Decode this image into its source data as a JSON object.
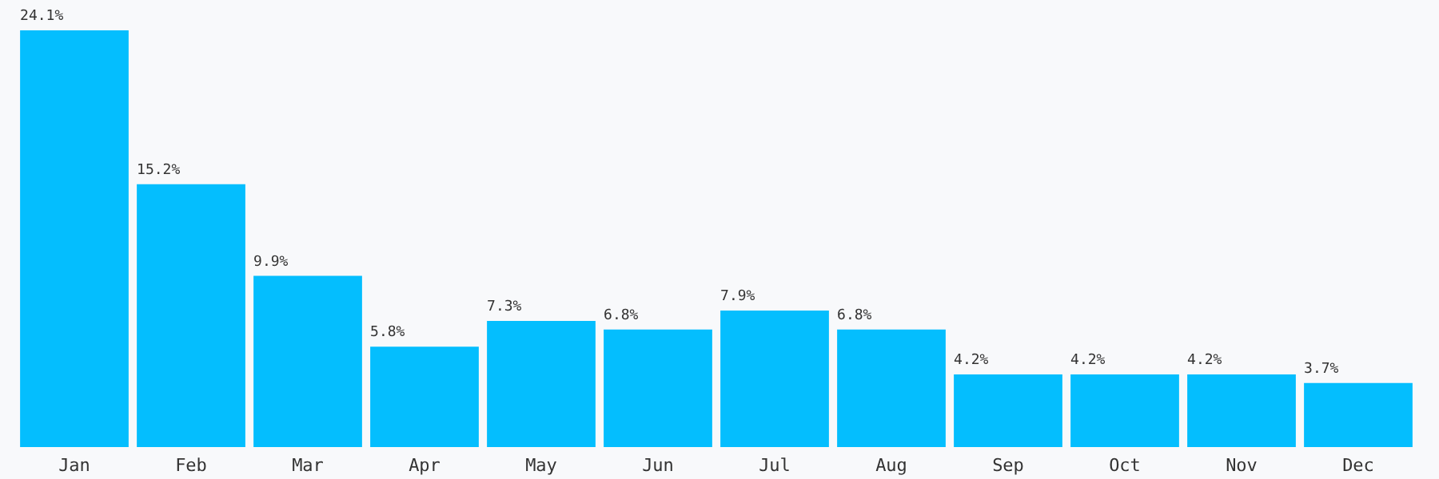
{
  "chart_data": {
    "type": "bar",
    "categories": [
      "Jan",
      "Feb",
      "Mar",
      "Apr",
      "May",
      "Jun",
      "Jul",
      "Aug",
      "Sep",
      "Oct",
      "Nov",
      "Dec"
    ],
    "values": [
      24.1,
      15.2,
      9.9,
      5.8,
      7.3,
      6.8,
      7.9,
      6.8,
      4.2,
      4.2,
      4.2,
      3.7
    ],
    "value_labels": [
      "24.1%",
      "15.2%",
      "9.9%",
      "5.8%",
      "7.3%",
      "6.8%",
      "7.9%",
      "6.8%",
      "4.2%",
      "4.2%",
      "4.2%",
      "3.7%"
    ],
    "color": "#04befe"
  }
}
